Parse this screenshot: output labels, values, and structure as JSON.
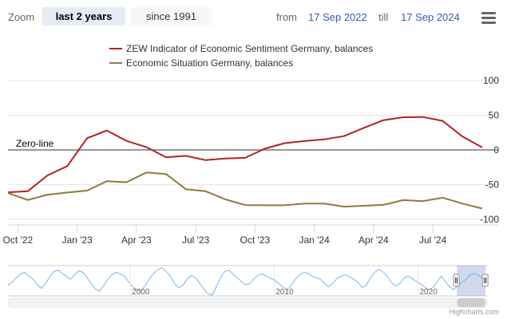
{
  "toolbar": {
    "zoom_label": "Zoom",
    "btn_2y": "last 2 years",
    "btn_since": "since 1991",
    "from_label": "from",
    "from_date": "17 Sep 2022",
    "till_label": "till",
    "till_date": "17 Sep 2024"
  },
  "colors": {
    "series1": "#b22222",
    "series2": "#8c7a3a",
    "navigator": "#7cb5ec",
    "zero": "#777777"
  },
  "chart_data": {
    "type": "line",
    "title": "",
    "x_unit": "months since Sep 2022",
    "x": [
      0,
      1,
      2,
      3,
      4,
      5,
      6,
      7,
      8,
      9,
      10,
      11,
      12,
      13,
      14,
      15,
      16,
      17,
      18,
      19,
      20,
      21,
      22,
      23,
      24
    ],
    "series": [
      {
        "name": "ZEW Indicator of Economic Sentiment Germany, balances",
        "values": [
          -61.0,
          -59.5,
          -36.7,
          -23.3,
          16.9,
          28.1,
          13.0,
          4.1,
          -10.7,
          -8.5,
          -14.7,
          -12.3,
          -11.4,
          1.8,
          9.8,
          12.8,
          15.2,
          19.9,
          31.7,
          42.9,
          47.1,
          47.5,
          41.8,
          19.2,
          3.6
        ]
      },
      {
        "name": "Economic Situation Germany, balances",
        "values": [
          -61.9,
          -72.2,
          -64.5,
          -61.4,
          -58.6,
          -45.1,
          -46.5,
          -32.5,
          -34.8,
          -56.5,
          -59.5,
          -71.3,
          -79.4,
          -79.8,
          -79.8,
          -77.3,
          -77.3,
          -81.7,
          -80.5,
          -79.2,
          -72.3,
          -73.8,
          -68.9,
          -77.3,
          -84.5
        ]
      }
    ],
    "zero_line_label": "Zero-line",
    "x_tick_labels": [
      "Oct '22",
      "Jan '23",
      "Apr '23",
      "Jul '23",
      "Oct '23",
      "Jan '24",
      "Apr '24",
      "Jul '24"
    ],
    "x_tick_positions": [
      0.5,
      3.5,
      6.5,
      9.5,
      12.5,
      15.5,
      18.5,
      21.5
    ],
    "y_tick_labels": [
      "100",
      "50",
      "0",
      "-50",
      "-100"
    ],
    "y_tick_values": [
      100,
      50,
      0,
      -50,
      -100
    ],
    "ylim": [
      -100,
      100
    ],
    "legend_position": "top-center",
    "navigator": {
      "x_labels": [
        "2000",
        "2010",
        "2020"
      ],
      "x_label_years": [
        2000,
        2010,
        2020
      ],
      "year_range": [
        1991.5,
        2024.8
      ],
      "selection_years": [
        2022.7,
        2024.7
      ],
      "values": [
        -30,
        -10,
        20,
        45,
        55,
        30,
        10,
        -25,
        -50,
        -20,
        25,
        60,
        70,
        50,
        30,
        10,
        40,
        65,
        55,
        20,
        -20,
        -55,
        -70,
        -30,
        10,
        40,
        55,
        45,
        30,
        -10,
        -40,
        -60,
        -65,
        -30,
        15,
        50,
        75,
        85,
        60,
        30,
        -20,
        -45,
        -30,
        10,
        35,
        20,
        -15,
        -55,
        -85,
        -95,
        -40,
        20,
        60,
        70,
        45,
        20,
        -5,
        -25,
        -20,
        10,
        35,
        45,
        30,
        15,
        5,
        -20,
        -40,
        -60,
        -30,
        10,
        40,
        55,
        50,
        30,
        20,
        10,
        -20,
        -40,
        -15,
        15,
        30,
        40,
        25,
        10,
        -10,
        -45,
        -30,
        20,
        55,
        75,
        60,
        30,
        -10,
        -35,
        -20,
        15,
        30,
        15,
        -5,
        -20,
        -40,
        -60,
        -45,
        -10,
        30,
        -5,
        -40,
        -60,
        -30,
        -10,
        10,
        40,
        48,
        35,
        10,
        5
      ]
    }
  },
  "credits": "Highcharts.com"
}
